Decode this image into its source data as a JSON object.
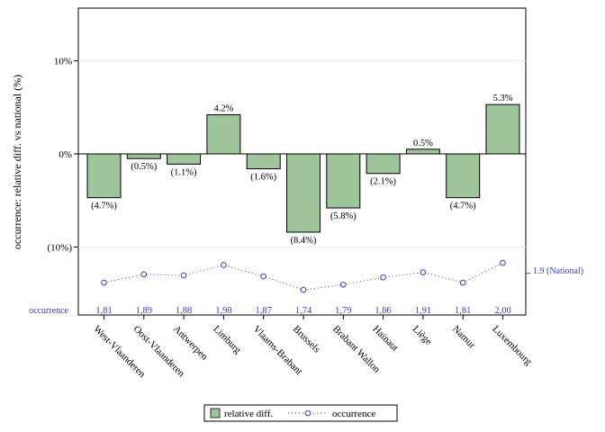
{
  "chart_data": {
    "type": "bar",
    "ylabel": "occurrence: relative diff. vs national (%)",
    "ylim": [
      -17,
      16
    ],
    "yticks": [
      {
        "value": 10,
        "label": "10%"
      },
      {
        "value": 0,
        "label": "0%"
      },
      {
        "value": -10,
        "label": "(10%)"
      }
    ],
    "categories": [
      "West-Vlaanderen",
      "Oost-Vlaanderen",
      "Antwerpen",
      "Limburg",
      "Vlaams-Brabant",
      "Brussels",
      "Brabant Wallon",
      "Hainaut",
      "Liège",
      "Namur",
      "Luxembourg"
    ],
    "series": [
      {
        "name": "relative diff.",
        "type": "bar",
        "color": "#9dc49a",
        "values": [
          -4.7,
          -0.5,
          -1.1,
          4.2,
          -1.6,
          -8.4,
          -5.8,
          -2.1,
          0.5,
          -4.7,
          5.3
        ],
        "labels": [
          "(4.7%)",
          "(0.5%)",
          "(1.1%)",
          "4.2%",
          "(1.6%)",
          "(8.4%)",
          "(5.8%)",
          "(2.1%)",
          "0.5%",
          "(4.7%)",
          "5.3%"
        ]
      },
      {
        "name": "occurrence",
        "type": "line",
        "color": "#3b3bd0",
        "values": [
          1.81,
          1.89,
          1.88,
          1.98,
          1.87,
          1.74,
          1.79,
          1.86,
          1.91,
          1.81,
          2.0
        ],
        "labels": [
          "1,81",
          "1,89",
          "1,88",
          "1,98",
          "1,87",
          "1,74",
          "1,79",
          "1,86",
          "1,91",
          "1,81",
          "2,00"
        ]
      }
    ],
    "occurrence_row_label": "occurrence",
    "national_reference": {
      "value": 1.9,
      "label": "1.9 (National)"
    },
    "legend": {
      "position": "bottom",
      "items": [
        "relative diff.",
        "occurrence"
      ]
    }
  }
}
